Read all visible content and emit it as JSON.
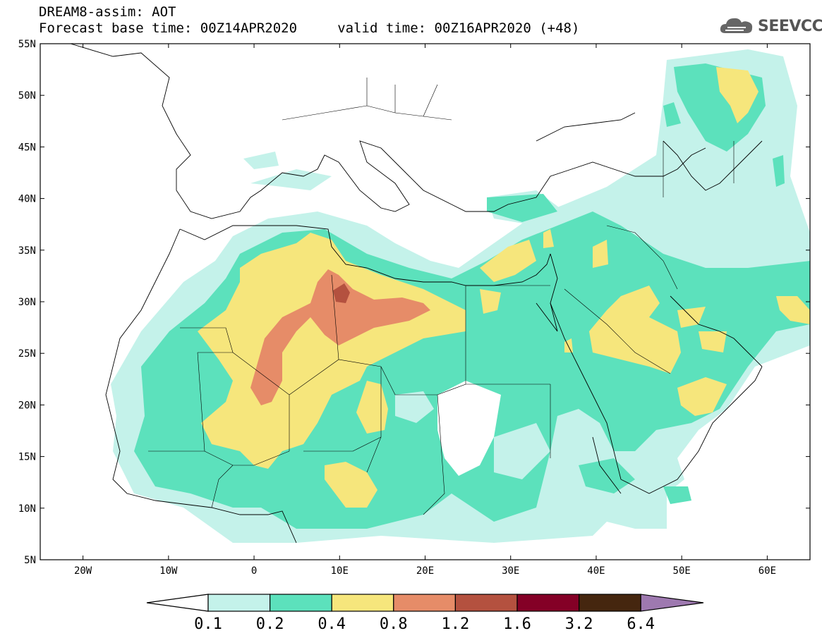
{
  "header": {
    "title_line1": "DREAM8-assim: AOT",
    "title_line2": "Forecast base time: 00Z14APR2020     valid time: 00Z16APR2020 (+48)",
    "logo_text": "SEEVCCC"
  },
  "map": {
    "projection": "lat-lon",
    "lon_range": [
      -25,
      65
    ],
    "lat_range": [
      5,
      55
    ],
    "lat_ticks": [
      "55N",
      "50N",
      "45N",
      "40N",
      "35N",
      "30N",
      "25N",
      "20N",
      "15N",
      "10N",
      "5N"
    ],
    "lon_ticks": [
      "20W",
      "10W",
      "0",
      "10E",
      "20E",
      "30E",
      "40E",
      "50E",
      "60E"
    ],
    "field": "AOT"
  },
  "colorbar": {
    "labels": [
      "0.1",
      "0.2",
      "0.4",
      "0.8",
      "1.2",
      "1.6",
      "3.2",
      "6.4"
    ],
    "colors": [
      "#ffffff",
      "#c4f2ea",
      "#5ce1bc",
      "#f6e67c",
      "#e68c68",
      "#b4513f",
      "#840026",
      "#45260f",
      "#9e79b0"
    ]
  }
}
